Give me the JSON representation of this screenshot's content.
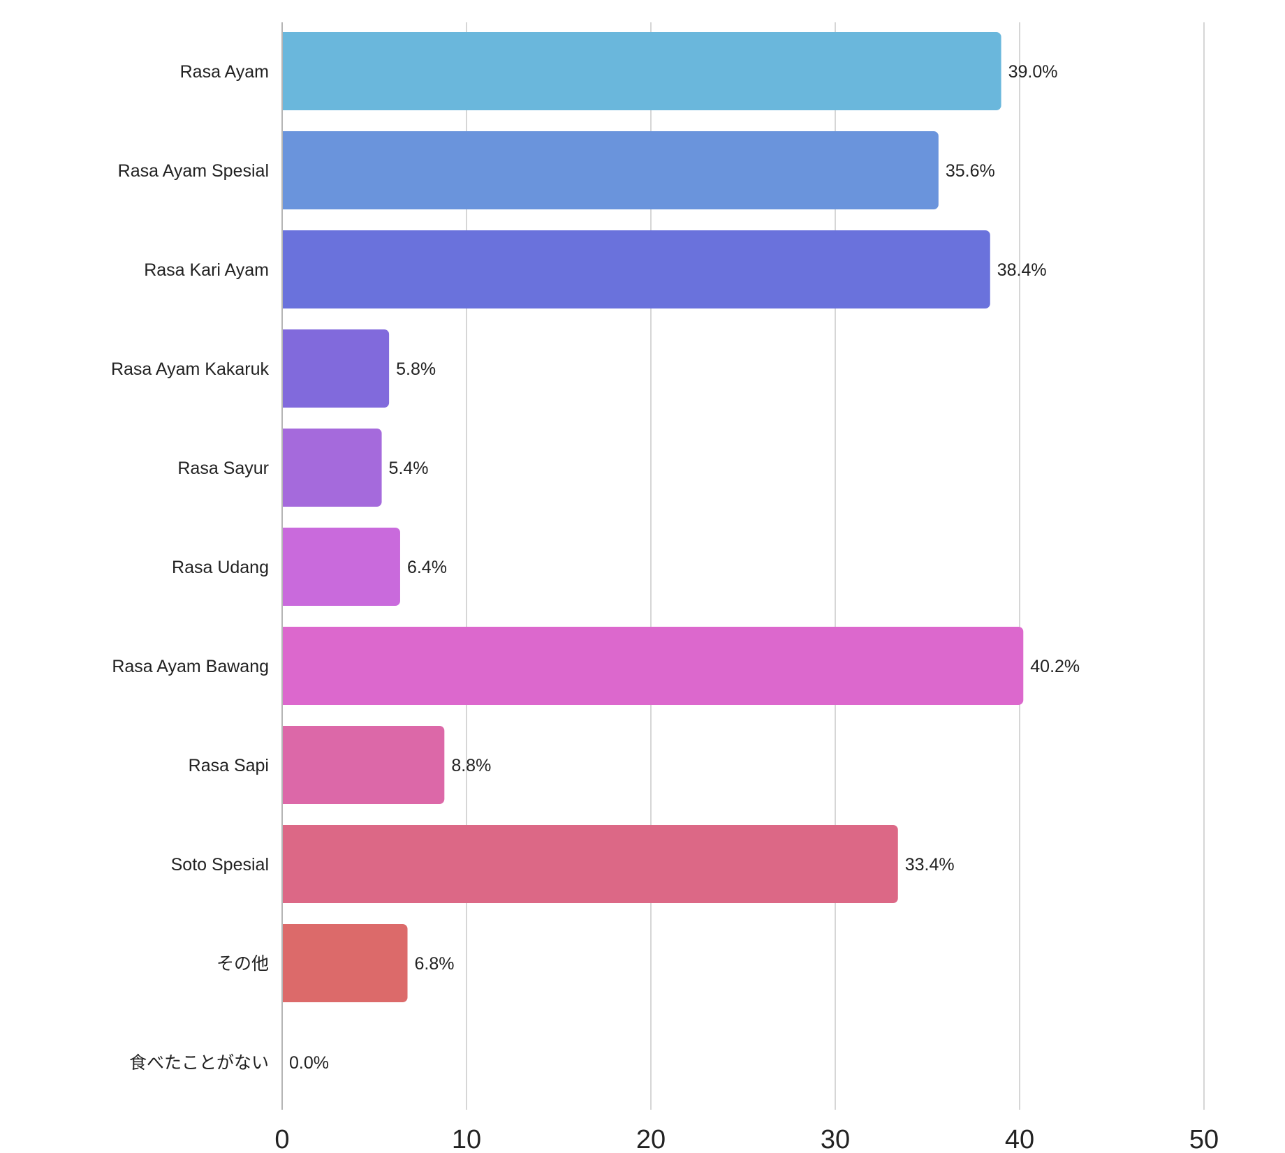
{
  "chart_data": {
    "type": "bar",
    "orientation": "horizontal",
    "title": "",
    "xlabel": "",
    "ylabel": "",
    "xlim": [
      0,
      50
    ],
    "xticks": [
      0,
      10,
      20,
      30,
      40,
      50
    ],
    "grid": true,
    "value_suffix": "%",
    "categories": [
      "Rasa Ayam",
      "Rasa Ayam Spesial",
      "Rasa Kari Ayam",
      "Rasa Ayam Kakaruk",
      "Rasa Sayur",
      "Rasa Udang",
      "Rasa Ayam Bawang",
      "Rasa Sapi",
      "Soto Spesial",
      "その他",
      "食べたことがない"
    ],
    "values": [
      39.0,
      35.6,
      38.4,
      5.8,
      5.4,
      6.4,
      40.2,
      8.8,
      33.4,
      6.8,
      0.0
    ],
    "value_labels": [
      "39.0%",
      "35.6%",
      "38.4%",
      "5.8%",
      "5.4%",
      "6.4%",
      "40.2%",
      "8.8%",
      "33.4%",
      "6.8%",
      "0.0%"
    ],
    "colors": [
      "#6ab7dc",
      "#6a94dc",
      "#6a72dc",
      "#816adc",
      "#a56adc",
      "#c96adc",
      "#dc68cd",
      "#dc68a8",
      "#dc6886",
      "#dc6a6a",
      "#dc6a6a"
    ]
  }
}
